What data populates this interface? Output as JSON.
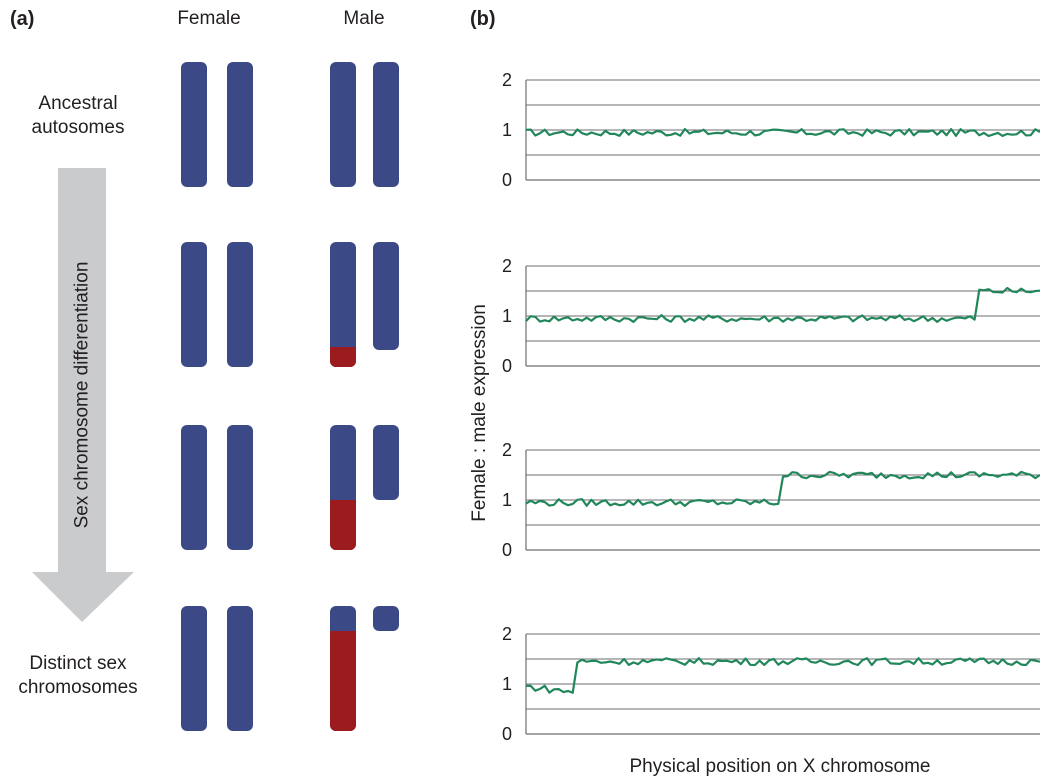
{
  "panel_a": {
    "label": "(a)",
    "col_female": "Female",
    "col_male": "Male",
    "row_top": [
      "Ancestral",
      "autosomes"
    ],
    "row_bottom": [
      "Distinct sex",
      "chromosomes"
    ],
    "arrow_label": "Sex chromosome differentiation",
    "colors": {
      "blue": "#3b4a86",
      "red": "#9b1b1e",
      "arrow": "#cacbcd"
    },
    "stages": [
      {
        "male_x_red_fraction": 0.0,
        "male_y_length_fraction": 1.0
      },
      {
        "male_x_red_fraction": 0.16,
        "male_y_length_fraction": 0.86
      },
      {
        "male_x_red_fraction": 0.4,
        "male_y_length_fraction": 0.6
      },
      {
        "male_x_red_fraction": 0.8,
        "male_y_length_fraction": 0.2
      }
    ]
  },
  "panel_b": {
    "label": "(b)",
    "y_axis_label": "Female : male  expression",
    "x_axis_label": "Physical position on X chromosome",
    "y_ticks": [
      "2",
      "1",
      "0"
    ],
    "line_color": "#21875a",
    "grid_color": "#6d6e71"
  },
  "chart_data": {
    "type": "line",
    "xlabel": "Physical position on X chromosome",
    "ylabel": "Female : male  expression",
    "ylim": [
      0,
      2
    ],
    "yticks": [
      0,
      1,
      2
    ],
    "grid": true,
    "panels": [
      {
        "baseline_start": 0.0,
        "step_start_fraction": null,
        "low_level": 0.95,
        "high_level": 0.95
      },
      {
        "baseline_start": 0.0,
        "step_start_fraction": 0.88,
        "low_level": 0.95,
        "high_level": 1.5
      },
      {
        "baseline_start": 0.0,
        "step_start_fraction": 0.5,
        "low_level": 0.95,
        "high_level": 1.5
      },
      {
        "baseline_start": 0.0,
        "step_start_fraction": 0.1,
        "low_level": 0.95,
        "high_level": 1.45
      }
    ]
  }
}
